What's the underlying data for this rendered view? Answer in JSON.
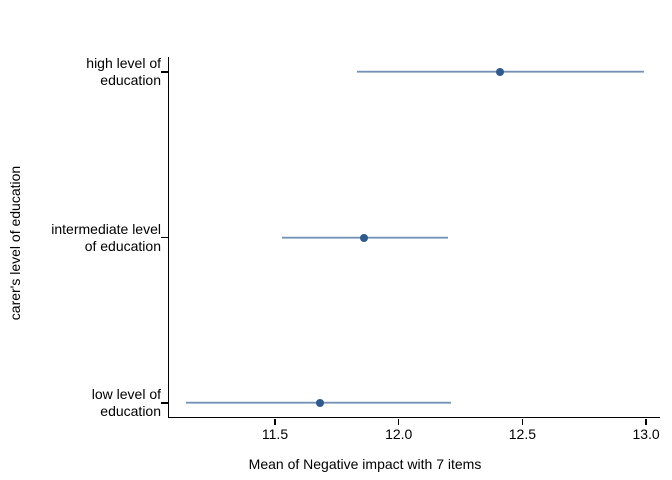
{
  "figure": {
    "background": "#ffffff"
  },
  "chart_data": {
    "type": "scatter",
    "subtype": "horizontal-dot-plot-with-interval-lines",
    "title": "",
    "xlabel": "Mean of Negative impact with 7 items",
    "ylabel": "carer's level of education",
    "xlim": [
      11.07,
      13.06
    ],
    "x_ticks": [
      11.5,
      12.0,
      12.5,
      13.0
    ],
    "x_tick_labels": [
      "11.5",
      "12.0",
      "12.5",
      "13.0"
    ],
    "grid": false,
    "legend_position": "none",
    "categories": [
      "high level of education",
      "intermediate level of education",
      "low level of education"
    ],
    "category_label_lines": [
      [
        "high level of",
        "education"
      ],
      [
        "intermediate level",
        "of education"
      ],
      [
        "low level of",
        "education"
      ]
    ],
    "series": [
      {
        "name": "mean",
        "points": [
          {
            "category": "high level of education",
            "mean": 12.41,
            "ci_low": 11.83,
            "ci_high": 12.99
          },
          {
            "category": "intermediate level of education",
            "mean": 11.86,
            "ci_low": 11.53,
            "ci_high": 12.2
          },
          {
            "category": "low level of education",
            "mean": 11.68,
            "ci_low": 11.14,
            "ci_high": 12.21
          }
        ]
      }
    ],
    "colors": {
      "marker": "#2e5a8c",
      "ci_line_top": "#5b7da8",
      "ci_line_bottom": "#a3b8d1",
      "axis": "#000000",
      "text": "#000000",
      "background": "#ffffff"
    }
  }
}
